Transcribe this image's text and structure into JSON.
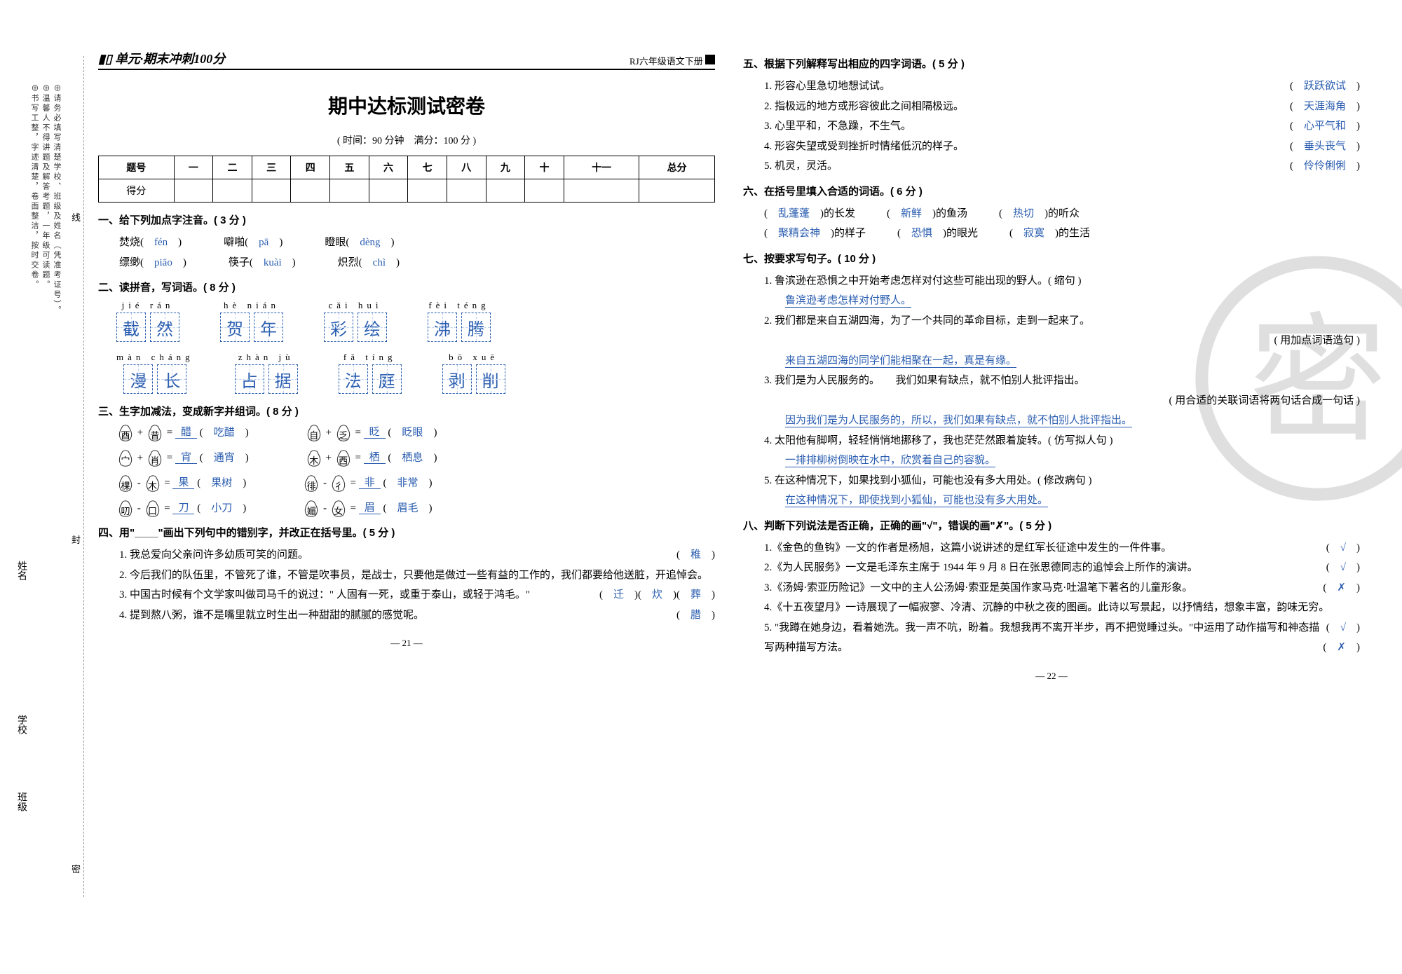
{
  "binding": {
    "text1": "⊕请务必填写清楚学校、班级及姓名（凭准考证号）。",
    "text2": "⊕温馨人不得讲题及解答考题，一年级可读题。",
    "text3": "⊕书写工整，字迹清楚，卷面整洁，按时交卷。",
    "char_xian": "线",
    "char_feng": "封",
    "char_mi": "密",
    "label_name": "姓名",
    "label_school": "学校",
    "label_class": "班级"
  },
  "header": {
    "series": "单元·期末冲刺100分",
    "book": "RJ六年级语文下册"
  },
  "title": "期中达标测试密卷",
  "meta": "( 时间：90 分钟　满分：100 分 )",
  "score_cols": [
    "题号",
    "一",
    "二",
    "三",
    "四",
    "五",
    "六",
    "七",
    "八",
    "九",
    "十",
    "十一",
    "总分"
  ],
  "score_row2": "得分",
  "q1": {
    "head": "一、给下列加点字注音。( 3 分 )",
    "items": [
      {
        "w": "焚烧",
        "p": "fén"
      },
      {
        "w": "噼啪",
        "p": "pā"
      },
      {
        "w": "瞪眼",
        "p": "dèng"
      },
      {
        "w": "缥缈",
        "p": "piāo"
      },
      {
        "w": "筷子",
        "p": "kuài"
      },
      {
        "w": "炽烈",
        "p": "chì"
      }
    ]
  },
  "q2": {
    "head": "二、读拼音，写词语。( 8 分 )",
    "groups": [
      [
        {
          "p": "jié   rán",
          "c": [
            "截",
            "然"
          ]
        },
        {
          "p": "hè   nián",
          "c": [
            "贺",
            "年"
          ]
        },
        {
          "p": "cǎi   huì",
          "c": [
            "彩",
            "绘"
          ]
        },
        {
          "p": "fèi   téng",
          "c": [
            "沸",
            "腾"
          ]
        }
      ],
      [
        {
          "p": "màn cháng",
          "c": [
            "漫",
            "长"
          ]
        },
        {
          "p": "zhàn   jù",
          "c": [
            "占",
            "据"
          ]
        },
        {
          "p": "fǎ   tíng",
          "c": [
            "法",
            "庭"
          ]
        },
        {
          "p": "bō   xuē",
          "c": [
            "剥",
            "削"
          ]
        }
      ]
    ]
  },
  "q3": {
    "head": "三、生字加减法，变成新字并组词。( 8 分 )",
    "rows": [
      [
        {
          "a": "酉",
          "op": "+",
          "b": "昔",
          "r": "醋",
          "w": "吃醋"
        },
        {
          "a": "自",
          "op": "+",
          "b": "乏",
          "r": "眨",
          "w": "眨眼"
        }
      ],
      [
        {
          "a": "宀",
          "op": "+",
          "b": "肖",
          "r": "宵",
          "w": "通宵"
        },
        {
          "a": "木",
          "op": "+",
          "b": "西",
          "r": "栖",
          "w": "栖息"
        }
      ],
      [
        {
          "a": "棵",
          "op": "-",
          "b": "木",
          "r": "果",
          "w": "果树"
        },
        {
          "a": "徘",
          "op": "-",
          "b": "彳",
          "r": "非",
          "w": "非常"
        }
      ],
      [
        {
          "a": "叨",
          "op": "-",
          "b": "口",
          "r": "刀",
          "w": "小刀"
        },
        {
          "a": "媚",
          "op": "-",
          "b": "女",
          "r": "眉",
          "w": "眉毛"
        }
      ]
    ]
  },
  "q4": {
    "head": "四、用\"____\"画出下列句中的错别字，并改正在括号里。( 5 分 )",
    "items": [
      {
        "t": "1. 我总爱向父亲问许多幼质可笑的问题。",
        "a": [
          "稚"
        ]
      },
      {
        "t": "2. 今后我们的队伍里，不管死了谁，不管是吹事员，是战士，只要他是做过一些有益的工作的，我们都要给他送脏，开追悼会。",
        "a": [
          "炊",
          "葬"
        ]
      },
      {
        "t": "3. 中国古时候有个文学家叫做司马千的说过：\" 人固有一死，或重于泰山，或轻于鸿毛。\"",
        "a": [
          "迁"
        ]
      },
      {
        "t": "4. 提到熬八粥，谁不是嘴里就立时生出一种甜甜的腻腻的感觉呢。",
        "a": [
          "腊"
        ]
      }
    ]
  },
  "q5": {
    "head": "五、根据下列解释写出相应的四字词语。( 5 分 )",
    "items": [
      {
        "t": "1. 形容心里急切地想试试。",
        "a": "跃跃欲试"
      },
      {
        "t": "2. 指极远的地方或形容彼此之间相隔极远。",
        "a": "天涯海角"
      },
      {
        "t": "3. 心里平和，不急躁，不生气。",
        "a": "心平气和"
      },
      {
        "t": "4. 形容失望或受到挫折时情绪低沉的样子。",
        "a": "垂头丧气"
      },
      {
        "t": "5. 机灵，灵活。",
        "a": "伶伶俐俐"
      }
    ]
  },
  "q6": {
    "head": "六、在括号里填入合适的词语。( 6 分 )",
    "rows": [
      [
        {
          "a": "乱蓬蓬",
          "t": "的长发"
        },
        {
          "a": "新鲜",
          "t": "的鱼汤"
        },
        {
          "a": "热切",
          "t": "的听众"
        }
      ],
      [
        {
          "a": "聚精会神",
          "t": "的样子"
        },
        {
          "a": "恐惧",
          "t": "的眼光"
        },
        {
          "a": "寂寞",
          "t": "的生活"
        }
      ]
    ]
  },
  "q7": {
    "head": "七、按要求写句子。( 10 分 )",
    "items": [
      {
        "q": "1. 鲁滨逊在恐惧之中开始考虑怎样对付这些可能出现的野人。( 缩句 )",
        "a": "鲁滨逊考虑怎样对付野人。"
      },
      {
        "q": "2. 我们都是来自五湖四海，为了一个共同的革命目标，走到一起来了。",
        "note": "( 用加点词语造句 )",
        "a": "来自五湖四海的同学们能相聚在一起，真是有缘。"
      },
      {
        "q": "3. 我们是为人民服务的。　　我们如果有缺点，就不怕别人批评指出。",
        "note": "( 用合适的关联词语将两句话合成一句话 )",
        "a": "因为我们是为人民服务的，所以，我们如果有缺点，就不怕别人批评指出。"
      },
      {
        "q": "4. 太阳他有脚啊，轻轻悄悄地挪移了，我也茫茫然跟着旋转。( 仿写拟人句 )",
        "a": "一排排柳树倒映在水中，欣赏着自己的容貌。"
      },
      {
        "q": "5. 在这种情况下，如果找到小狐仙，可能也没有多大用处。( 修改病句 )",
        "a": "在这种情况下，即使找到小狐仙，可能也没有多大用处。"
      }
    ]
  },
  "q8": {
    "head": "八、判断下列说法是否正确，正确的画\"√\"，错误的画\"✗\"。( 5 分 )",
    "items": [
      {
        "t": "1.《金色的鱼钩》一文的作者是杨旭，这篇小说讲述的是红军长征途中发生的一件件事。",
        "a": "√"
      },
      {
        "t": "2.《为人民服务》一文是毛泽东主席于 1944 年 9 月 8 日在张思德同志的追悼会上所作的演讲。",
        "a": "√"
      },
      {
        "t": "3.《汤姆·索亚历险记》一文中的主人公汤姆·索亚是英国作家马克·吐温笔下著名的儿童形象。",
        "a": "✗"
      },
      {
        "t": "4.《十五夜望月》一诗展现了一幅寂寥、冷清、沉静的中秋之夜的图画。此诗以写景起，以抒情结，想象丰富，韵味无穷。",
        "a": "√"
      },
      {
        "t": "5. \"我蹲在她身边，看着她洗。我一声不吭，盼着。我想我再不离开半步，再不把觉睡过头。\"中运用了动作描写和神态描写两种描写方法。",
        "a": "✗"
      }
    ]
  },
  "footer": {
    "p1": "— 21 —",
    "p2": "— 22 —"
  },
  "colors": {
    "blue": "#2a5db0"
  }
}
